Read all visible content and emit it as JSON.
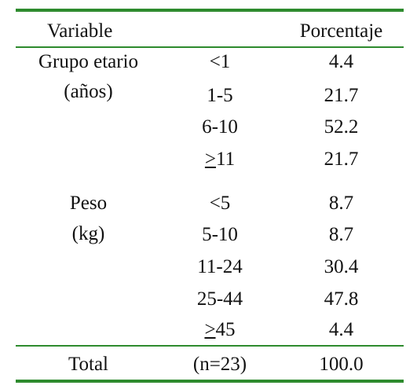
{
  "table": {
    "header": {
      "variable": "Variable",
      "percentage": "Porcentaje"
    },
    "groups": [
      {
        "label_line1": "Grupo etario",
        "label_line2": "(años)",
        "rows": [
          {
            "range": "<1",
            "value": "4.4"
          },
          {
            "range": "1-5",
            "value": "21.7"
          },
          {
            "range": "6-10",
            "value": "52.2"
          },
          {
            "range_prefix": ">",
            "range_rest": "11",
            "value": "21.7"
          }
        ]
      },
      {
        "label_line1": "Peso",
        "label_line2": "(kg)",
        "rows": [
          {
            "range": "<5",
            "value": "8.7"
          },
          {
            "range": "5-10",
            "value": "8.7"
          },
          {
            "range": "11-24",
            "value": "30.4"
          },
          {
            "range": "25-44",
            "value": "47.8"
          },
          {
            "range_prefix": ">",
            "range_rest": "45",
            "value": "4.4"
          }
        ]
      }
    ],
    "total": {
      "label": "Total",
      "n": "(n=23)",
      "value": "100.0"
    },
    "rule_color": "#2e8b2e"
  }
}
